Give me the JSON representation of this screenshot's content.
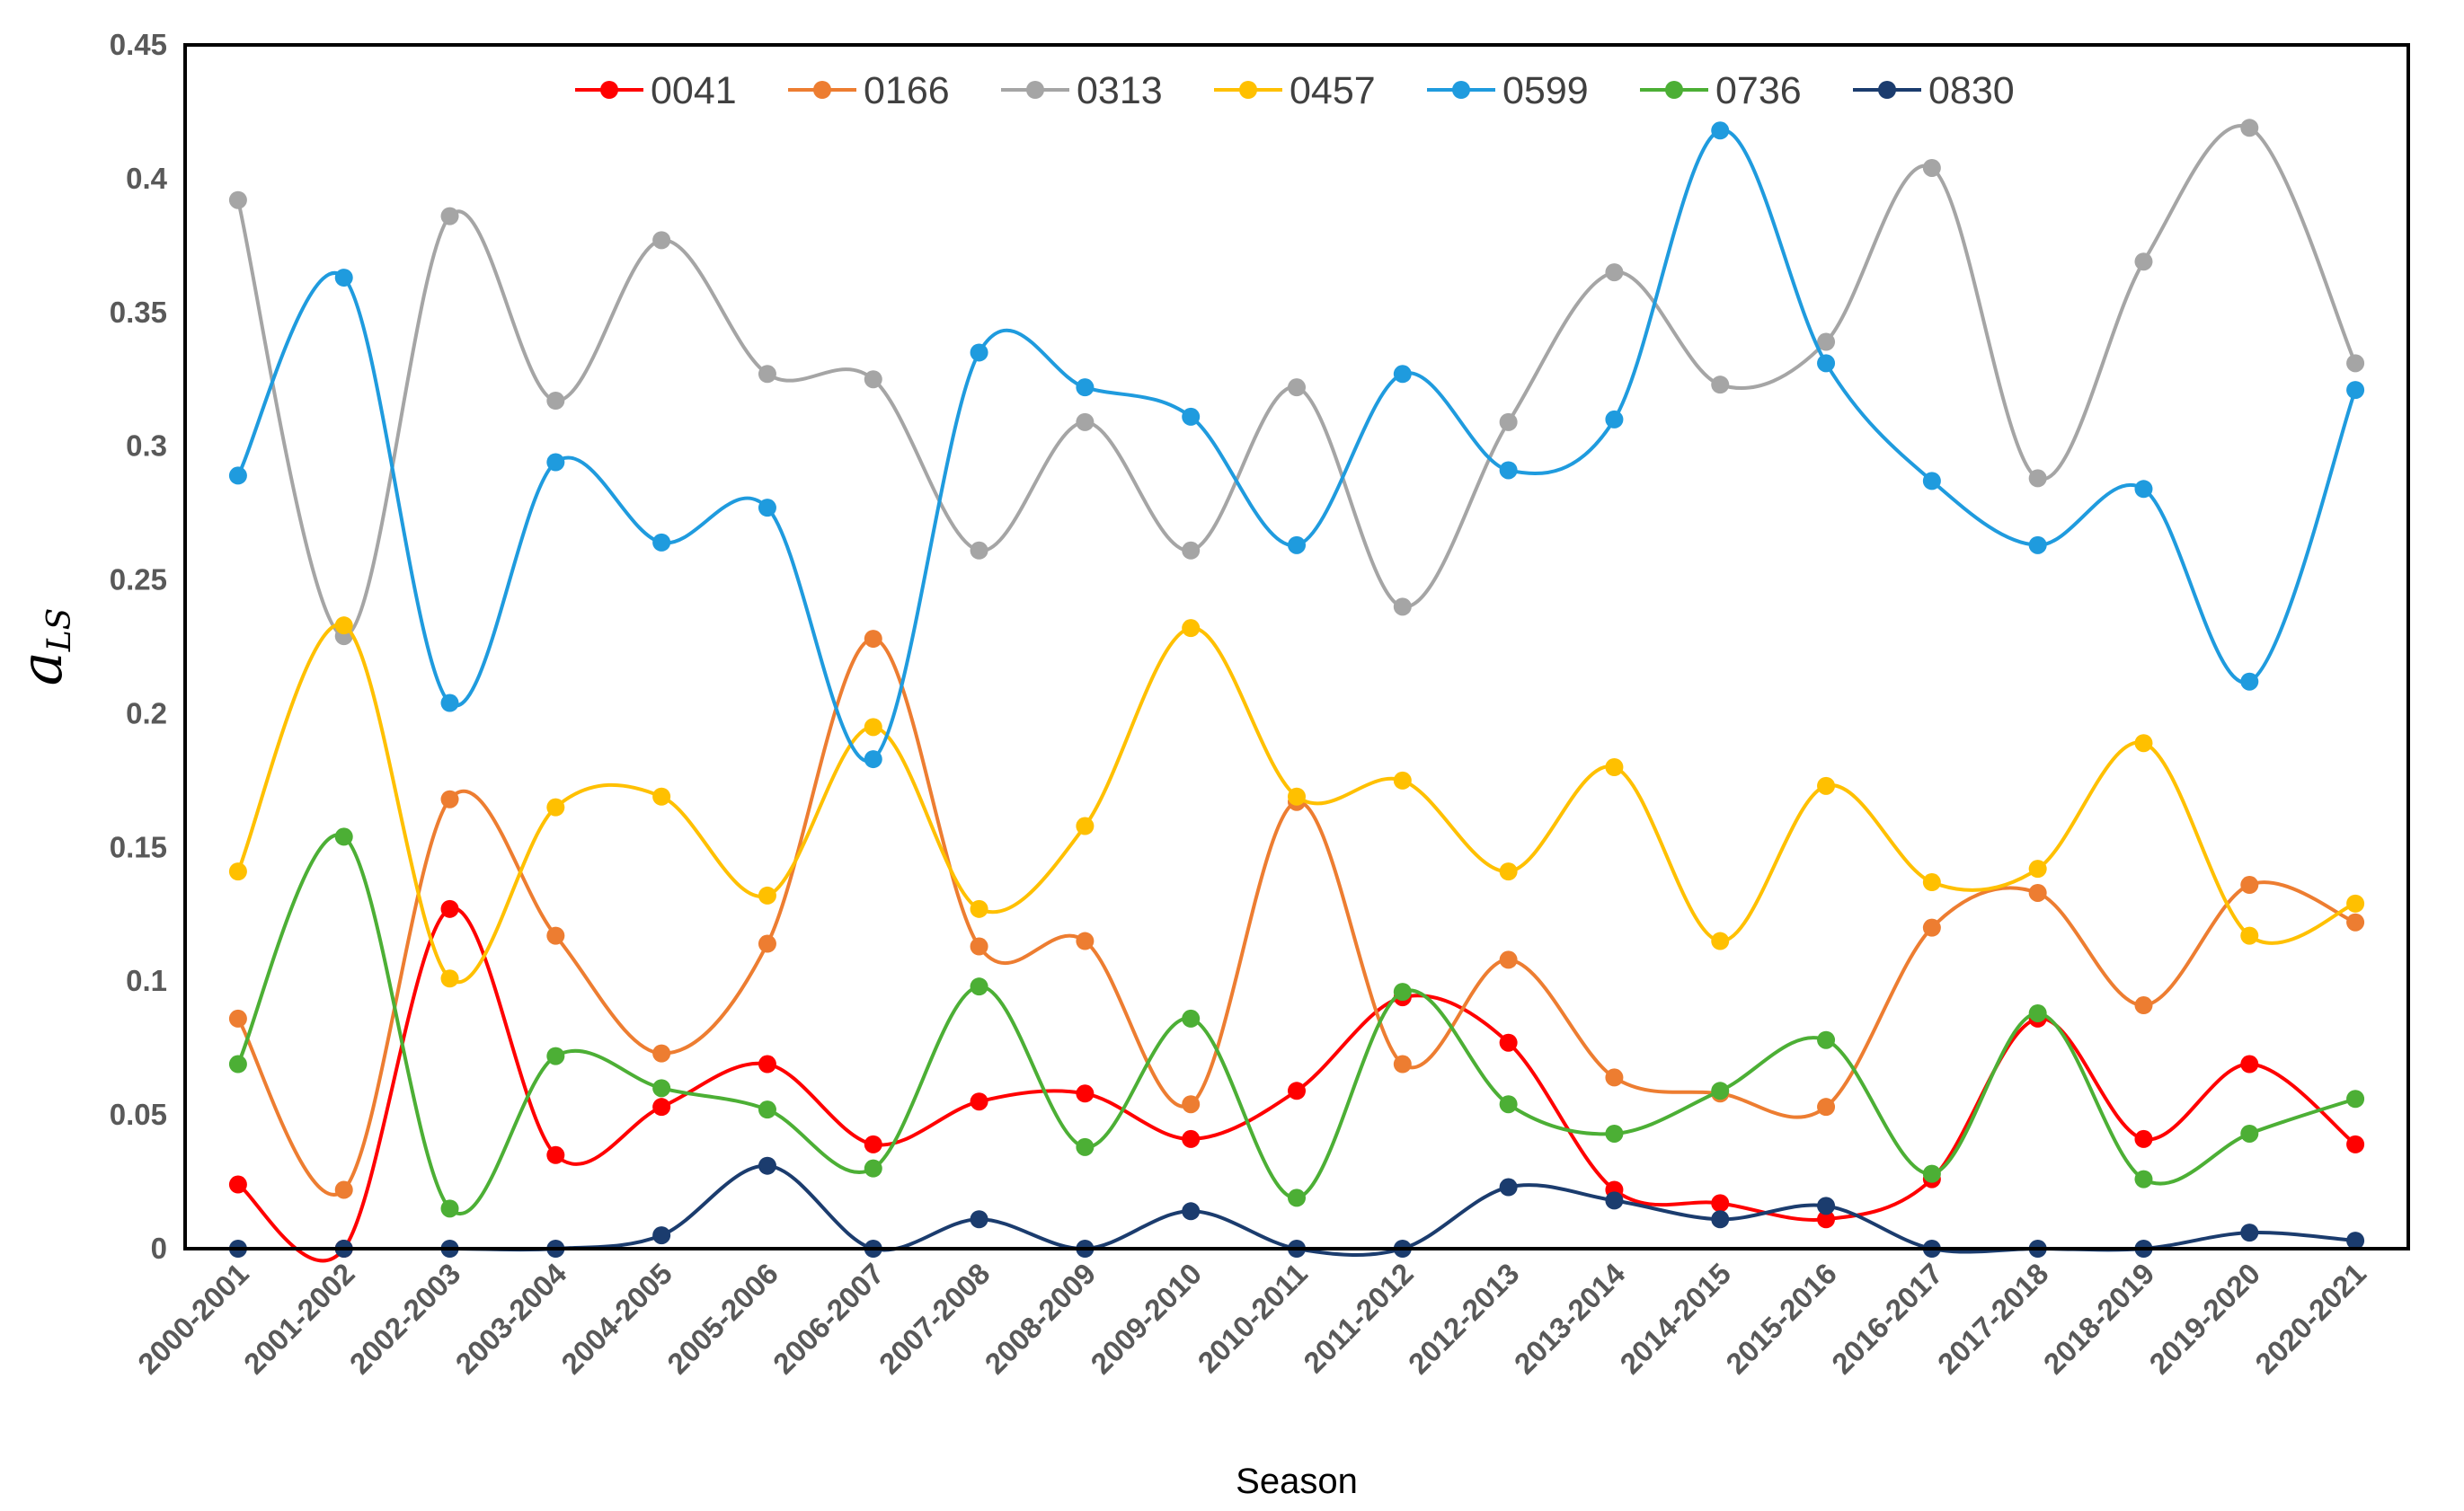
{
  "chart_data": {
    "type": "line",
    "title": "",
    "xlabel": "Season",
    "ylabel_main": "a",
    "ylabel_sub": "LS",
    "ylim": [
      0,
      0.45
    ],
    "yticks": [
      0,
      0.05,
      0.1,
      0.15,
      0.2,
      0.25,
      0.3,
      0.35,
      0.4,
      0.45
    ],
    "ytick_labels": [
      "0",
      "0.05",
      "0.1",
      "0.15",
      "0.2",
      "0.25",
      "0.3",
      "0.35",
      "0.4",
      "0.45"
    ],
    "legend_position": "top",
    "categories": [
      "2000-2001",
      "2001-2002",
      "2002-2003",
      "2003-2004",
      "2004-2005",
      "2005-2006",
      "2006-2007",
      "2007-2008",
      "2008-2009",
      "2009-2010",
      "2010-2011",
      "2011-2012",
      "2012-2013",
      "2013-2014",
      "2014-2015",
      "2015-2016",
      "2016-2017",
      "2017-2018",
      "2018-2019",
      "2019-2020",
      "2020-2021"
    ],
    "series": [
      {
        "name": "0041",
        "color": "#ff0000",
        "values": [
          0.024,
          0.0,
          0.127,
          0.035,
          0.053,
          0.069,
          0.039,
          0.055,
          0.058,
          0.041,
          0.059,
          0.094,
          0.077,
          0.022,
          0.017,
          0.011,
          0.026,
          0.086,
          0.041,
          0.069,
          0.039
        ]
      },
      {
        "name": "0166",
        "color": "#ed7d31",
        "values": [
          0.086,
          0.022,
          0.168,
          0.117,
          0.073,
          0.114,
          0.228,
          0.113,
          0.115,
          0.054,
          0.167,
          0.069,
          0.108,
          0.064,
          0.058,
          0.053,
          0.12,
          0.133,
          0.091,
          0.136,
          0.122
        ]
      },
      {
        "name": "0313",
        "color": "#a5a5a5",
        "values": [
          0.392,
          0.229,
          0.386,
          0.317,
          0.377,
          0.327,
          0.325,
          0.261,
          0.309,
          0.261,
          0.322,
          0.24,
          0.309,
          0.365,
          0.323,
          0.339,
          0.404,
          0.288,
          0.369,
          0.419,
          0.331
        ]
      },
      {
        "name": "0457",
        "color": "#ffc000",
        "values": [
          0.141,
          0.233,
          0.101,
          0.165,
          0.169,
          0.132,
          0.195,
          0.127,
          0.158,
          0.232,
          0.169,
          0.175,
          0.141,
          0.18,
          0.115,
          0.173,
          0.137,
          0.142,
          0.189,
          0.117,
          0.129
        ]
      },
      {
        "name": "0599",
        "color": "#1f9bde",
        "values": [
          0.289,
          0.363,
          0.204,
          0.294,
          0.264,
          0.277,
          0.183,
          0.335,
          0.322,
          0.311,
          0.263,
          0.327,
          0.291,
          0.31,
          0.418,
          0.331,
          0.287,
          0.263,
          0.284,
          0.212,
          0.321
        ]
      },
      {
        "name": "0736",
        "color": "#4caf35",
        "values": [
          0.069,
          0.154,
          0.015,
          0.072,
          0.06,
          0.052,
          0.03,
          0.098,
          0.038,
          0.086,
          0.019,
          0.096,
          0.054,
          0.043,
          0.059,
          0.078,
          0.028,
          0.088,
          0.026,
          0.043,
          0.056
        ]
      },
      {
        "name": "0830",
        "color": "#1b3c6e",
        "values": [
          0.0,
          0.0,
          0.0,
          0.0,
          0.005,
          0.031,
          0.0,
          0.011,
          0.0,
          0.014,
          0.0,
          0.0,
          0.023,
          0.018,
          0.011,
          0.016,
          0.0,
          0.0,
          0.0,
          0.006,
          0.003
        ]
      }
    ]
  }
}
